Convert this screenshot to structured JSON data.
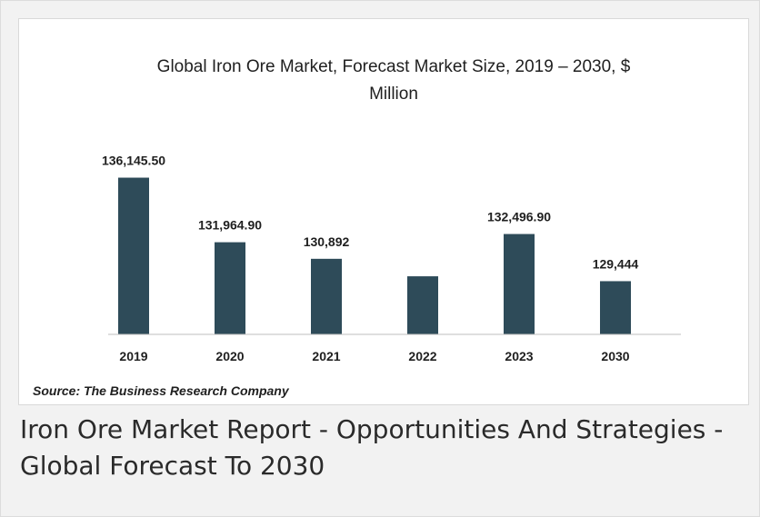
{
  "caption": "Iron Ore Market Report - Opportunities And Strategies - Global Forecast To 2030",
  "chart_data": {
    "type": "bar",
    "title_lines": [
      "Global Iron Ore Market, Forecast Market Size, 2019 – 2030, $",
      "Million"
    ],
    "categories": [
      "2019",
      "2020",
      "2021",
      "2022",
      "2023",
      "2030"
    ],
    "values": [
      136145.5,
      131964.9,
      130892,
      129760,
      132496.9,
      129444
    ],
    "data_labels": [
      "136,145.50",
      "131,964.90",
      "130,892",
      "",
      "132,496.90",
      "129,444"
    ],
    "ylim": [
      126000,
      137000
    ],
    "bar_color": "#2e4b59",
    "axis_line_color": "#bfbfbf",
    "grid": false,
    "legend": false,
    "source": "Source: The Business Research Company"
  }
}
